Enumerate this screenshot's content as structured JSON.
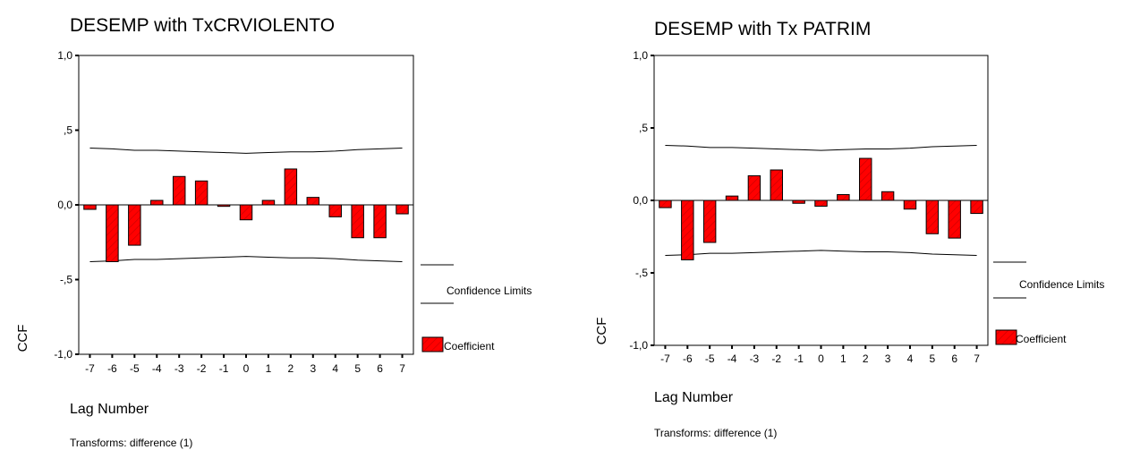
{
  "chart_data": [
    {
      "type": "bar",
      "title": "DESEMP with TxCRVIOLENTO",
      "xlabel": "Lag Number",
      "ylabel": "CCF",
      "footnote": "Transforms: difference (1)",
      "ylim": [
        -1.0,
        1.0
      ],
      "yticks": [
        {
          "value": 1.0,
          "label": "1,0"
        },
        {
          "value": 0.5,
          "label": ",5"
        },
        {
          "value": 0.0,
          "label": "0,0"
        },
        {
          "value": -0.5,
          "label": "-,5"
        },
        {
          "value": -1.0,
          "label": "-1,0"
        }
      ],
      "categories": [
        "-7",
        "-6",
        "-5",
        "-4",
        "-3",
        "-2",
        "-1",
        "0",
        "1",
        "2",
        "3",
        "4",
        "5",
        "6",
        "7"
      ],
      "values": [
        -0.03,
        -0.38,
        -0.27,
        0.03,
        0.19,
        0.16,
        -0.01,
        -0.1,
        0.03,
        0.24,
        0.05,
        -0.08,
        -0.22,
        -0.22,
        -0.06
      ],
      "upper_limit": [
        0.38,
        0.375,
        0.365,
        0.365,
        0.36,
        0.355,
        0.35,
        0.345,
        0.35,
        0.355,
        0.355,
        0.36,
        0.37,
        0.375,
        0.38
      ],
      "lower_limit": [
        -0.38,
        -0.375,
        -0.365,
        -0.365,
        -0.36,
        -0.355,
        -0.35,
        -0.345,
        -0.35,
        -0.355,
        -0.355,
        -0.36,
        -0.37,
        -0.375,
        -0.38
      ],
      "legend": {
        "limits_label": "Confidence Limits",
        "coef_label": "Coefficient"
      },
      "bar_color": "#ff0000"
    },
    {
      "type": "bar",
      "title": "DESEMP with Tx PATRIM",
      "xlabel": "Lag Number",
      "ylabel": "CCF",
      "footnote": "Transforms: difference (1)",
      "ylim": [
        -1.0,
        1.0
      ],
      "yticks": [
        {
          "value": 1.0,
          "label": "1,0"
        },
        {
          "value": 0.5,
          "label": ",5"
        },
        {
          "value": 0.0,
          "label": "0,0"
        },
        {
          "value": -0.5,
          "label": "-,5"
        },
        {
          "value": -1.0,
          "label": "-1,0"
        }
      ],
      "categories": [
        "-7",
        "-6",
        "-5",
        "-4",
        "-3",
        "-2",
        "-1",
        "0",
        "1",
        "2",
        "3",
        "4",
        "5",
        "6",
        "7"
      ],
      "values": [
        -0.05,
        -0.41,
        -0.29,
        0.03,
        0.17,
        0.21,
        -0.02,
        -0.04,
        0.04,
        0.29,
        0.06,
        -0.06,
        -0.23,
        -0.26,
        -0.09
      ],
      "upper_limit": [
        0.38,
        0.375,
        0.365,
        0.365,
        0.36,
        0.355,
        0.35,
        0.345,
        0.35,
        0.355,
        0.355,
        0.36,
        0.37,
        0.375,
        0.38
      ],
      "lower_limit": [
        -0.38,
        -0.375,
        -0.365,
        -0.365,
        -0.36,
        -0.355,
        -0.35,
        -0.345,
        -0.35,
        -0.355,
        -0.355,
        -0.36,
        -0.37,
        -0.375,
        -0.38
      ],
      "legend": {
        "limits_label": "Confidence Limits",
        "coef_label": "Coefficient"
      },
      "bar_color": "#ff0000"
    }
  ]
}
